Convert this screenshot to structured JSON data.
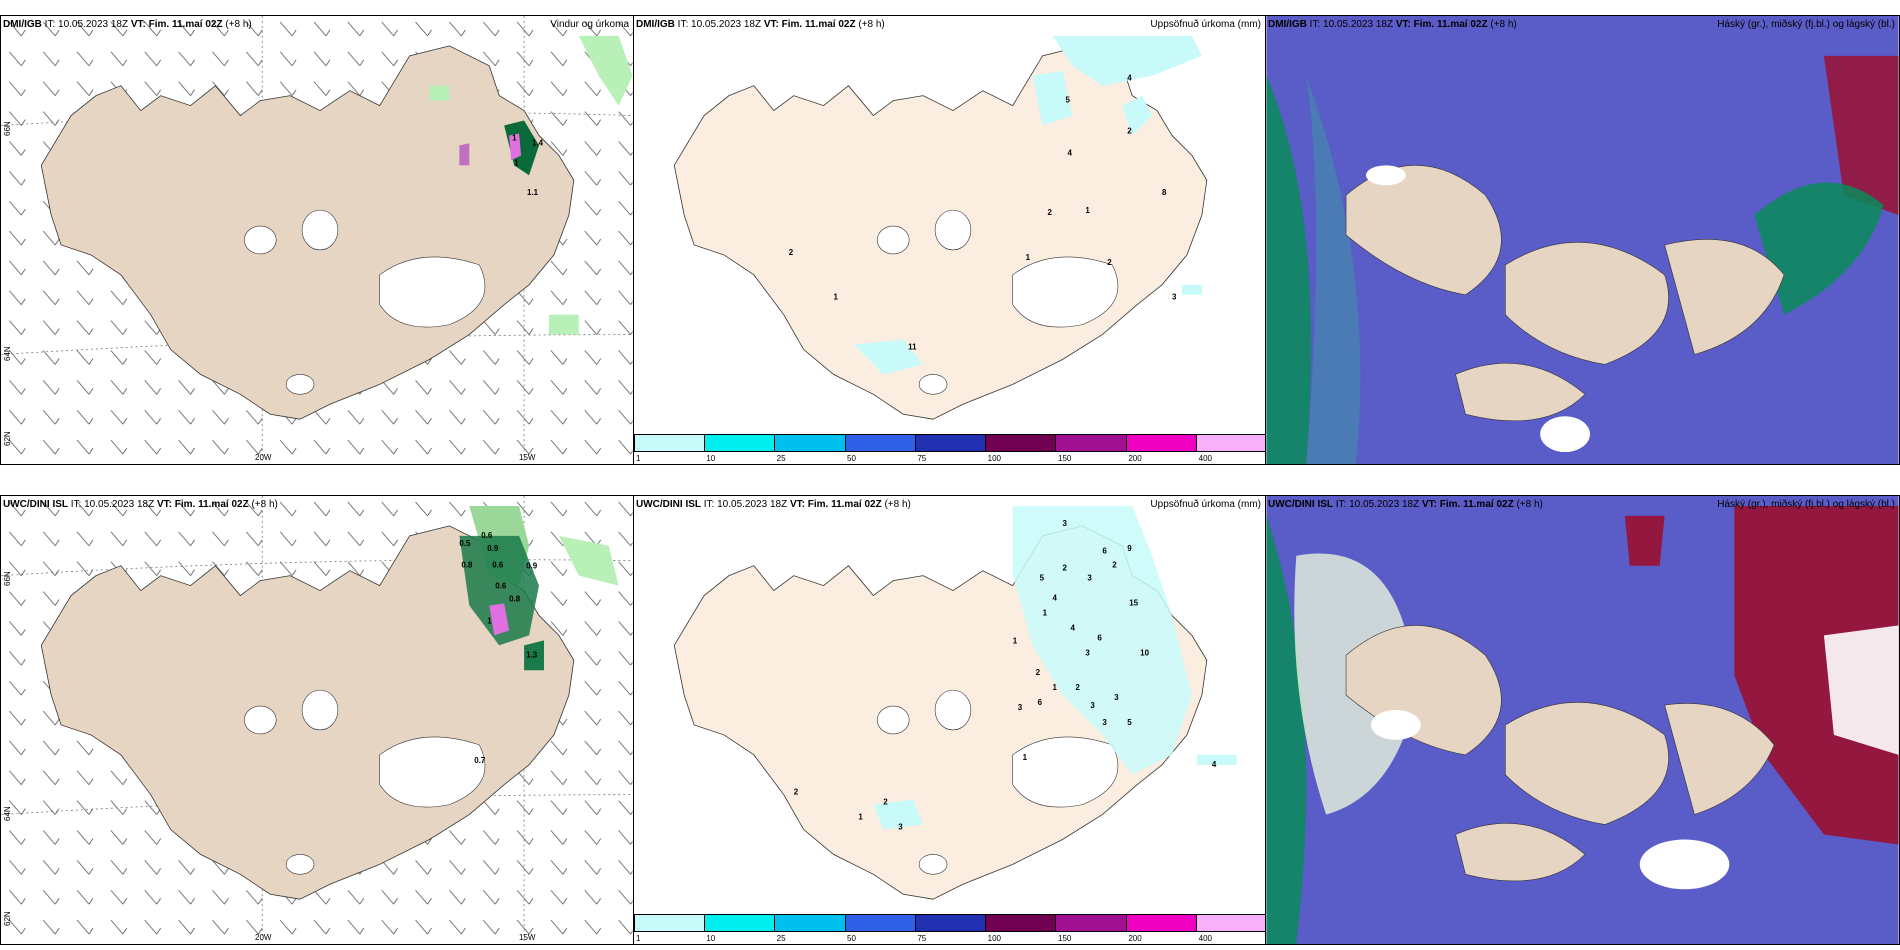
{
  "rows": [
    {
      "source": "DMI/IGB",
      "it_label": "IT:",
      "it_value": "10.05.2023 18Z",
      "vt_label": "VT:",
      "vt_value": "Fim. 11.maí 02Z",
      "lead": "(+8 h)"
    },
    {
      "source": "UWC/DINI ISL",
      "it_label": "IT:",
      "it_value": "10.05.2023 18Z",
      "vt_label": "VT:",
      "vt_value": "Fim. 11.maí 02Z",
      "lead": "(+8 h)"
    }
  ],
  "panel_titles": {
    "wind": "Vindur og úrkoma",
    "precip": "Uppsöfnuð úrkoma (mm)",
    "cloud": "Háský (gr.), miðský (fj.bl.) og lágský (bl.)"
  },
  "axis_labels": {
    "lon_20w": "20W",
    "lon_15w": "15W",
    "lat_66n": "66N",
    "lat_64n": "64N",
    "lat_62n": "62N"
  },
  "colorbar": {
    "colors": [
      "#c8fafa",
      "#00f0f0",
      "#00c0f0",
      "#3060e8",
      "#2030b0",
      "#700050",
      "#a01090",
      "#f000c0",
      "#f8b0f8"
    ],
    "labels": [
      "1",
      "10",
      "25",
      "50",
      "75",
      "100",
      "150",
      "200",
      "400"
    ]
  },
  "precip_labels_top": [
    "5",
    "4",
    "4",
    "2",
    "1",
    "8",
    "2",
    "1",
    "2",
    "1",
    "3",
    "11",
    "2"
  ],
  "precip_labels_bottom": [
    "3",
    "6",
    "9",
    "5",
    "2",
    "3",
    "2",
    "4",
    "15",
    "1",
    "4",
    "6",
    "1",
    "3",
    "10",
    "2",
    "1",
    "2",
    "6",
    "3",
    "3",
    "3",
    "3",
    "5",
    "4",
    "1",
    "1",
    "2",
    "3",
    "2"
  ],
  "wind_labels_top": [
    "1",
    "1",
    "1.4",
    "1.1"
  ],
  "wind_labels_bottom": [
    "0.6",
    "0.5",
    "0.9",
    "0.8",
    "0.6",
    "0.9",
    "0.6",
    "0.8",
    "1",
    "1.3",
    "0.7"
  ],
  "colors": {
    "land": "#e6d5c3",
    "land_precip": "#fbeee0",
    "sea_cloud": "#5a5cc8",
    "green": "#0a8a5a",
    "red": "#9a1030",
    "light_green": "#b8f0b8",
    "cyan_light": "#c8fafa"
  }
}
